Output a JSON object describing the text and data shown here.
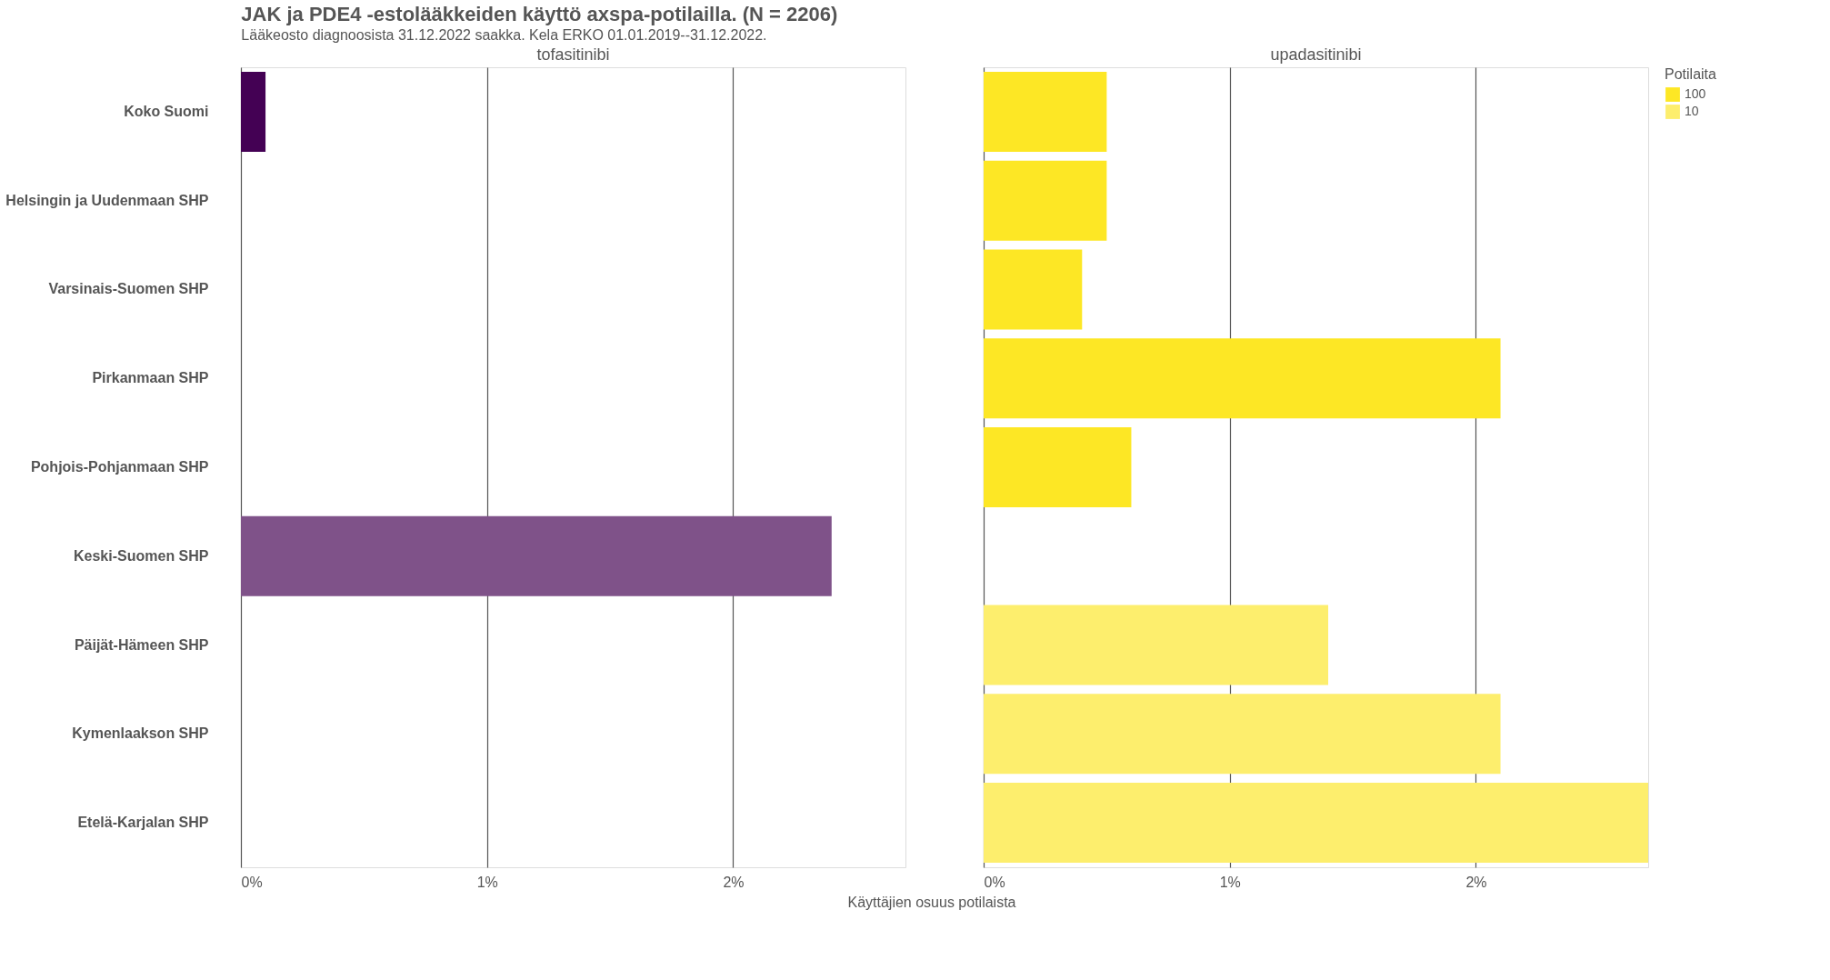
{
  "chart_data": [
    {
      "type": "bar",
      "orientation": "horizontal",
      "title": "JAK ja PDE4 -estolääkkeiden käyttö axspa-potilailla. (N = 2206)",
      "subtitle": "Lääkeosto diagnoosista 31.12.2022 saakka. Kela ERKO 01.01.2019--31.12.2022.",
      "x2label": "tofasitinibi",
      "categories": [
        "Koko Suomi",
        "Helsingin ja Uudenmaan SHP",
        "Varsinais-Suomen SHP",
        "Pirkanmaan SHP",
        "Pohjois-Pohjanmaan SHP",
        "Keski-Suomen SHP",
        "Päijät-Hämeen SHP",
        "Kymenlaakson SHP",
        "Etelä-Karjalan SHP"
      ],
      "values": [
        0.1,
        null,
        null,
        null,
        null,
        2.4,
        null,
        null,
        null
      ],
      "colors": [
        "#440154",
        "#440154",
        "#440154",
        "#440154",
        "#440154",
        "#7f5289",
        "#7f5289",
        "#7f5289",
        "#7f5289"
      ],
      "xlim": [
        0,
        2.7
      ],
      "xticks": [
        {
          "value": 0,
          "label": "0%"
        },
        {
          "value": 1,
          "label": "1%"
        },
        {
          "value": 2,
          "label": "2%"
        }
      ],
      "grid": "x",
      "tick_labels": "xy"
    },
    {
      "type": "bar",
      "orientation": "horizontal",
      "x2label": "upadasitinibi",
      "xlabel": "Käyttäjien osuus potilaista",
      "legend_title": "Potilaita",
      "legend": "right",
      "categories": [
        null,
        null,
        null,
        null,
        null,
        null,
        null,
        null,
        null
      ],
      "series": [
        {
          "name": "100",
          "color": "#fde725",
          "values": [
            0.5,
            0.5,
            0.4,
            2.1,
            0.6,
            null,
            null,
            null,
            null
          ]
        },
        {
          "name": "10",
          "color": "#fdee6d",
          "values": [
            null,
            null,
            null,
            null,
            null,
            null,
            1.4,
            2.1,
            2.7
          ]
        }
      ],
      "xlim": [
        0,
        2.7
      ],
      "xticks": [
        {
          "value": 0,
          "label": "0%"
        },
        {
          "value": 1,
          "label": "1%"
        },
        {
          "value": 2,
          "label": "2%"
        }
      ],
      "grid": "x",
      "tick_labels": "x"
    }
  ]
}
